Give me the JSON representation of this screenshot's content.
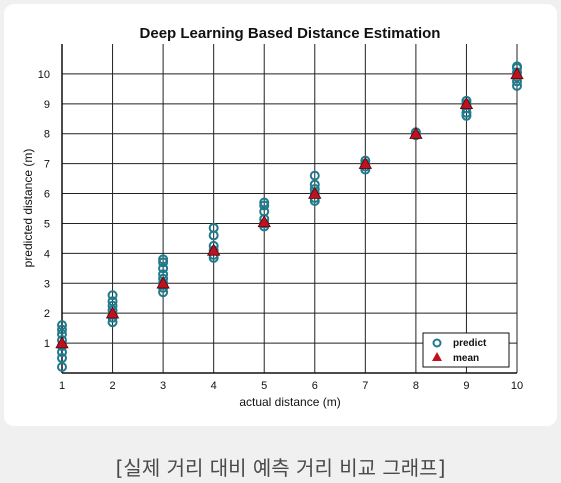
{
  "caption": "[실제 거리 대비 예측 거리 비교 그래프]",
  "chart_data": {
    "type": "scatter",
    "title": "Deep Learning Based Distance Estimation",
    "xlabel": "actual distance (m)",
    "ylabel": "predicted distance (m)",
    "xlim": [
      1,
      10
    ],
    "ylim": [
      0,
      11
    ],
    "xticks": [
      1,
      2,
      3,
      4,
      5,
      6,
      7,
      8,
      9,
      10
    ],
    "yticks": [
      1,
      2,
      3,
      4,
      5,
      6,
      7,
      8,
      9,
      10
    ],
    "grid": true,
    "legend_position": "bottom-right",
    "colors": {
      "predict": "#1f7a8c",
      "mean": "#c0111f"
    },
    "series": [
      {
        "name": "predict",
        "marker": "circle",
        "points": [
          [
            1,
            0.2
          ],
          [
            1,
            0.5
          ],
          [
            1,
            0.7
          ],
          [
            1,
            0.9
          ],
          [
            1,
            1.1
          ],
          [
            1,
            1.3
          ],
          [
            1,
            1.45
          ],
          [
            1,
            1.6
          ],
          [
            2,
            1.7
          ],
          [
            2,
            1.85
          ],
          [
            2,
            1.95
          ],
          [
            2,
            2.1
          ],
          [
            2,
            2.25
          ],
          [
            2,
            2.4
          ],
          [
            2,
            2.6
          ],
          [
            3,
            2.7
          ],
          [
            3,
            2.85
          ],
          [
            3,
            3.0
          ],
          [
            3,
            3.15
          ],
          [
            3,
            3.3
          ],
          [
            3,
            3.5
          ],
          [
            3,
            3.7
          ],
          [
            3,
            3.8
          ],
          [
            4,
            3.85
          ],
          [
            4,
            3.95
          ],
          [
            4,
            4.1
          ],
          [
            4,
            4.25
          ],
          [
            4,
            4.6
          ],
          [
            4,
            4.85
          ],
          [
            5,
            4.9
          ],
          [
            5,
            5.0
          ],
          [
            5,
            5.15
          ],
          [
            5,
            5.4
          ],
          [
            5,
            5.6
          ],
          [
            5,
            5.7
          ],
          [
            6,
            5.75
          ],
          [
            6,
            5.85
          ],
          [
            6,
            6.0
          ],
          [
            6,
            6.15
          ],
          [
            6,
            6.3
          ],
          [
            6,
            6.6
          ],
          [
            7,
            6.8
          ],
          [
            7,
            6.9
          ],
          [
            7,
            7.0
          ],
          [
            7,
            7.1
          ],
          [
            8,
            7.95
          ],
          [
            8,
            8.05
          ],
          [
            9,
            8.6
          ],
          [
            9,
            8.7
          ],
          [
            9,
            8.85
          ],
          [
            9,
            9.0
          ],
          [
            9,
            9.1
          ],
          [
            10,
            9.6
          ],
          [
            10,
            9.75
          ],
          [
            10,
            9.9
          ],
          [
            10,
            10.05
          ],
          [
            10,
            10.2
          ],
          [
            10,
            10.25
          ]
        ]
      },
      {
        "name": "mean",
        "marker": "triangle",
        "points": [
          [
            1,
            1.0
          ],
          [
            2,
            2.0
          ],
          [
            3,
            3.0
          ],
          [
            4,
            4.1
          ],
          [
            5,
            5.05
          ],
          [
            6,
            6.0
          ],
          [
            7,
            7.0
          ],
          [
            8,
            8.0
          ],
          [
            9,
            9.0
          ],
          [
            10,
            10.0
          ]
        ]
      }
    ]
  }
}
